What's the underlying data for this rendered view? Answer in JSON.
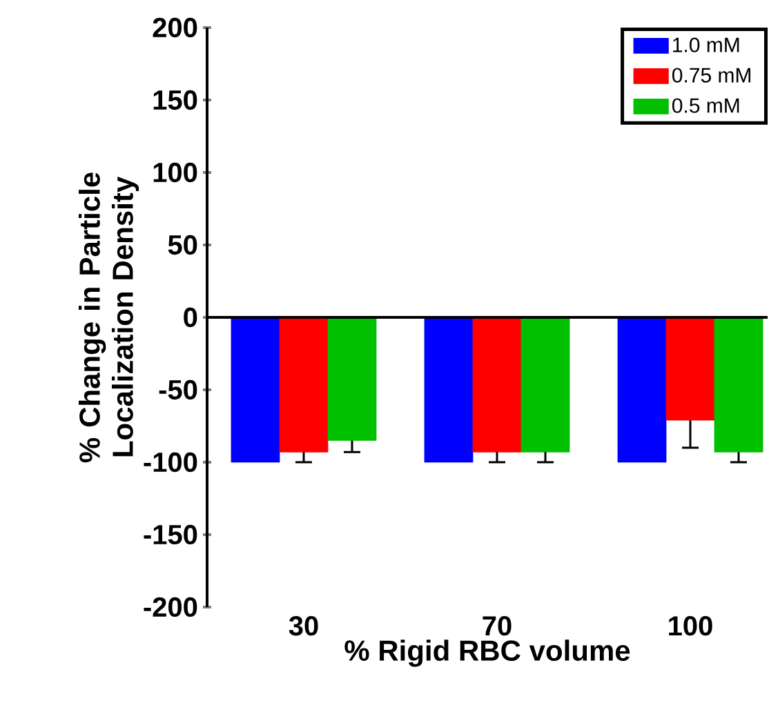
{
  "chart_data": {
    "type": "bar",
    "xlabel": "% Rigid RBC volume",
    "ylabel": "% Change in Particle Localization Density",
    "categories": [
      "30",
      "70",
      "100"
    ],
    "series": [
      {
        "name": "1.0 mM",
        "color": "#0000ff",
        "values": [
          -100,
          -100,
          -100
        ]
      },
      {
        "name": "0.75 mM",
        "color": "#ff0000",
        "values": [
          -93,
          -93,
          -71
        ],
        "errors": [
          [
            -100,
            -93
          ],
          [
            -100,
            -93
          ],
          [
            -90,
            -71
          ]
        ]
      },
      {
        "name": "0.5 mM",
        "color": "#00c000",
        "values": [
          -85,
          -93,
          -93
        ],
        "errors": [
          [
            -93,
            -85
          ],
          [
            -100,
            -93
          ],
          [
            -100,
            -93
          ]
        ]
      }
    ],
    "ylim": [
      -200,
      200
    ],
    "yticks": [
      -200,
      -150,
      -100,
      -50,
      0,
      50,
      100,
      150,
      200
    ],
    "grid": false,
    "legend": "top right",
    "ref_lines": [
      {
        "axis": "y",
        "value": 0
      }
    ]
  }
}
